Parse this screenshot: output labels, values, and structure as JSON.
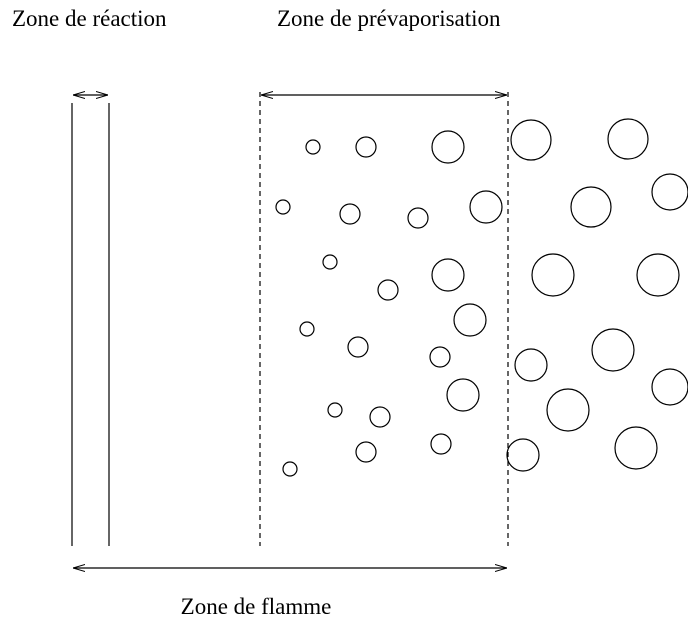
{
  "labels": {
    "reaction": "Zone de réaction",
    "prevaporisation": "Zone de prévaporisation",
    "flamme": "Zone de flamme"
  }
}
